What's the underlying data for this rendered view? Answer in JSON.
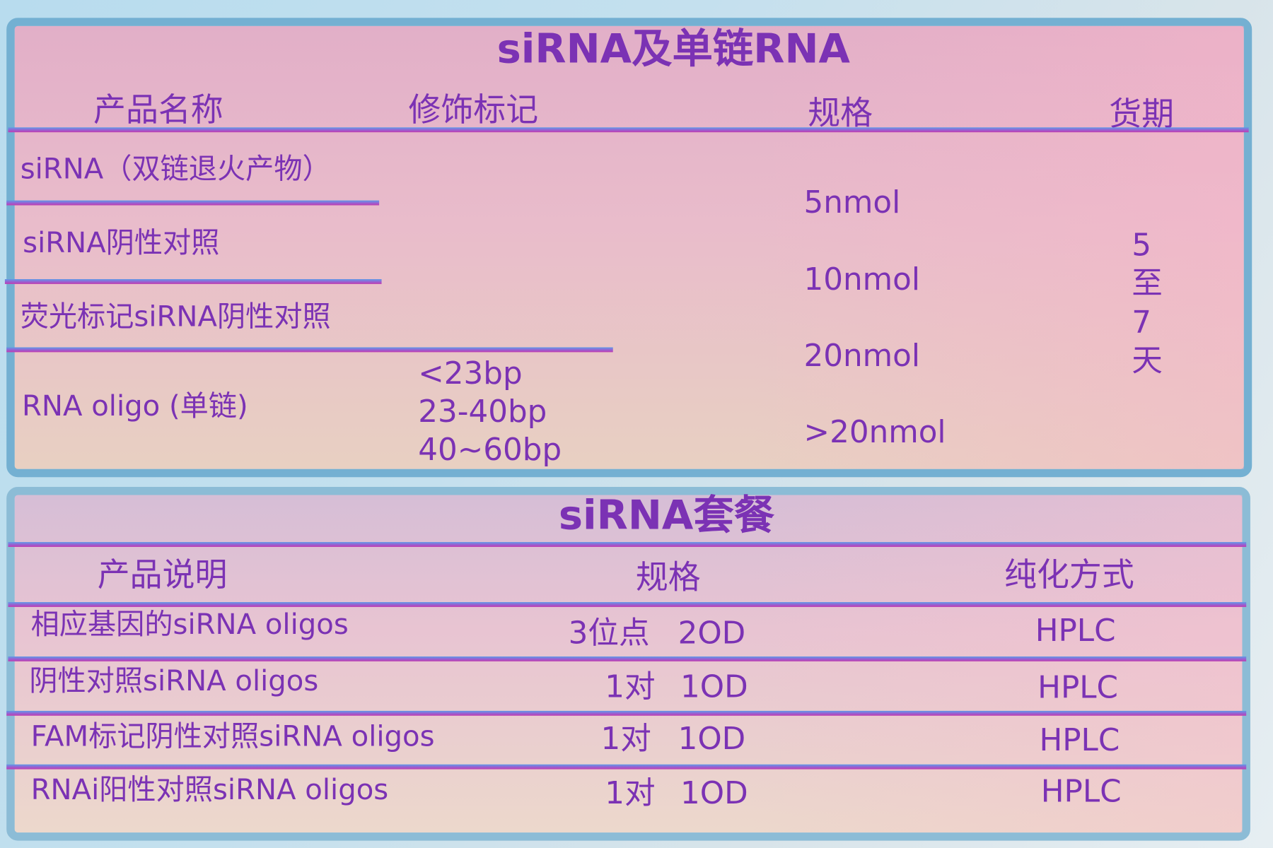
{
  "table1": {
    "title": "siRNA及单链RNA",
    "headers": [
      "产品名称",
      "修饰标记",
      "规格",
      "货期"
    ],
    "products": [
      "siRNA（双链退火产物）",
      "siRNA阴性对照",
      "荧光标记siRNA阴性对照",
      "RNA oligo (单链)"
    ],
    "modifications": [
      "<23bp",
      "23-40bp",
      "40~60bp"
    ],
    "specs": [
      "5nmol",
      "10nmol",
      "20nmol",
      ">20nmol"
    ],
    "delivery": [
      "5",
      "至",
      "7",
      "天"
    ]
  },
  "table2": {
    "title": "siRNA套餐",
    "headers": [
      "产品说明",
      "规格",
      "纯化方式"
    ],
    "rows": [
      {
        "name": "相应基因的siRNA oligos",
        "qty": "3位点",
        "amount": "2OD",
        "purification": "HPLC"
      },
      {
        "name": "阴性对照siRNA oligos",
        "qty": "1对",
        "amount": "1OD",
        "purification": "HPLC"
      },
      {
        "name": "FAM标记阴性对照siRNA oligos",
        "qty": "1对",
        "amount": "1OD",
        "purification": "HPLC"
      },
      {
        "name": "RNAi阳性对照siRNA oligos",
        "qty": "1对",
        "amount": "1OD",
        "purification": "HPLC"
      }
    ]
  },
  "colors": {
    "text": "#7b32b4",
    "frame": "#74b0d2",
    "rule_top": "#5f9be8",
    "rule_bottom": "#c03cb0"
  }
}
